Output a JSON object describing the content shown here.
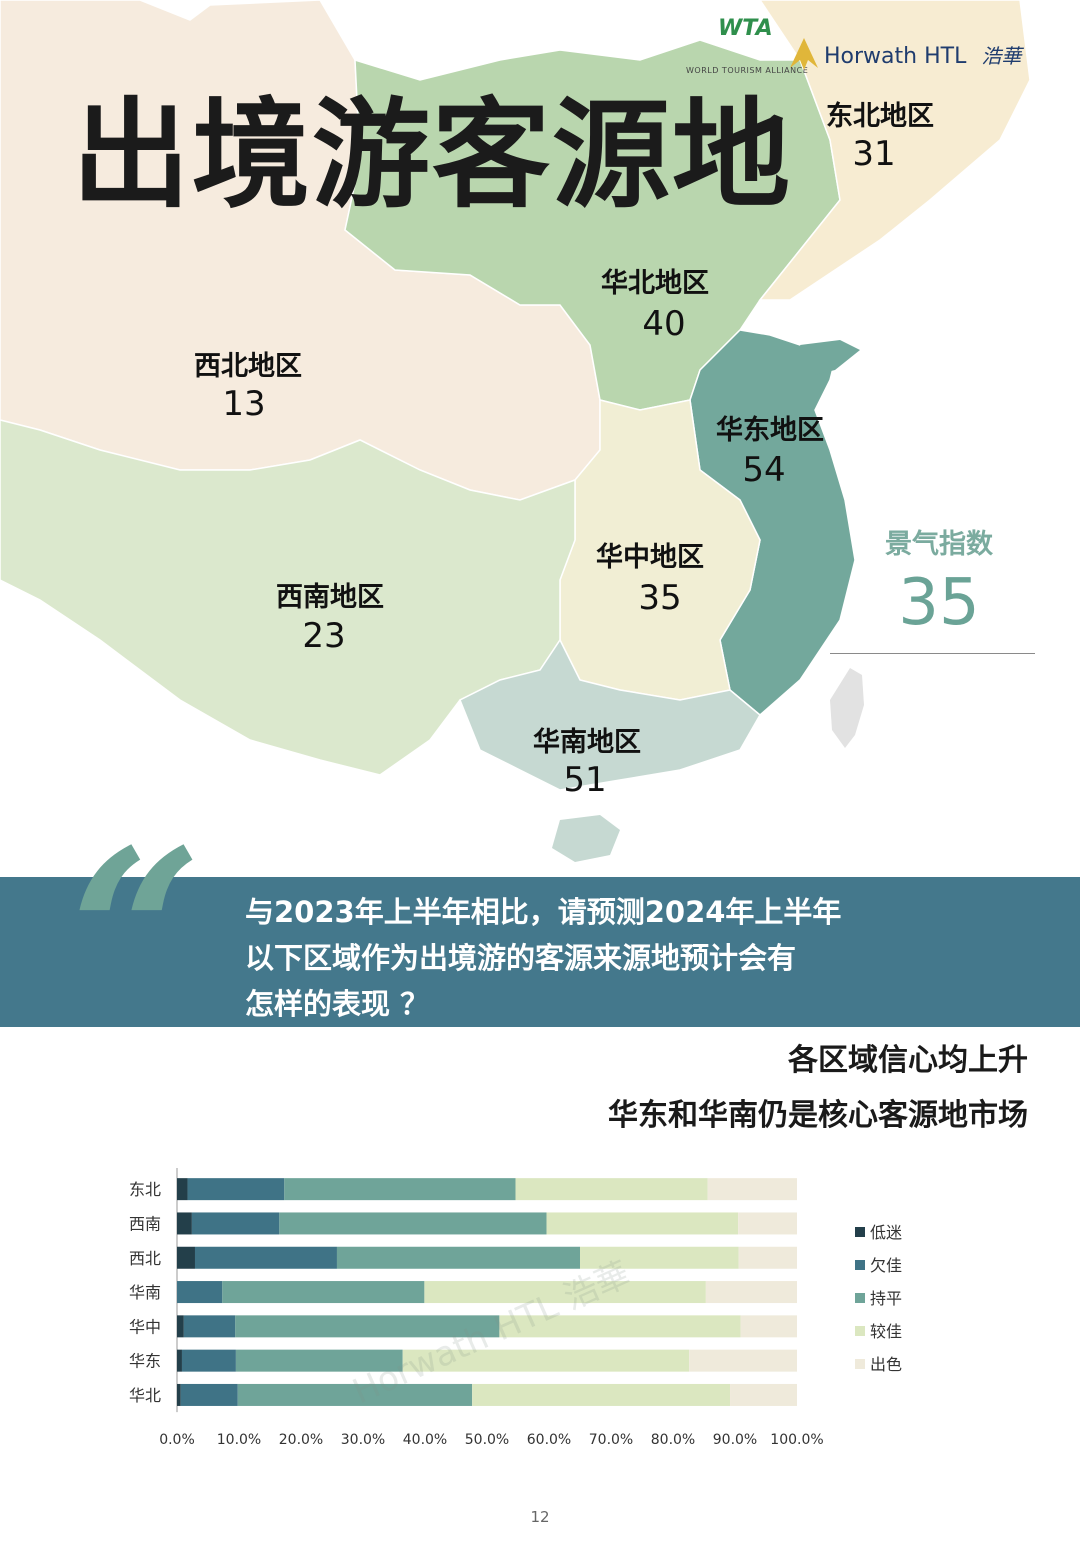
{
  "title": "出境游客源地",
  "logos": {
    "wta": "WTA",
    "wta_sub": "WORLD TOURISM ALLIANCE",
    "horwath": "Horwath HTL",
    "horwath_cn": "浩華"
  },
  "regions": [
    {
      "name": "东北地区",
      "value": "31",
      "color": "#f7ecd2"
    },
    {
      "name": "华北地区",
      "value": "40",
      "color": "#b9d6ae"
    },
    {
      "name": "西北地区",
      "value": "13",
      "color": "#f6ebde"
    },
    {
      "name": "华东地区",
      "value": "54",
      "color": "#73a89c"
    },
    {
      "name": "华中地区",
      "value": "35",
      "color": "#f1eed4"
    },
    {
      "name": "西南地区",
      "value": "23",
      "color": "#dbe8cd"
    },
    {
      "name": "华南地区",
      "value": "51",
      "color": "#c6d9d2"
    }
  ],
  "index": {
    "label": "景气指数",
    "value": "35"
  },
  "question": {
    "lines": [
      "与2023年上半年相比，请预测2024年上半年",
      "以下区域作为出境游的客源来源地预计会有",
      "怎样的表现 ？"
    ]
  },
  "headlines": [
    "各区域信心均上升",
    "华东和华南仍是核心客源地市场"
  ],
  "chart_data": {
    "type": "bar",
    "orientation": "horizontal",
    "stacked": true,
    "categories": [
      "东北",
      "西南",
      "西北",
      "华南",
      "华中",
      "华东",
      "华北"
    ],
    "series": [
      {
        "name": "低迷",
        "color": "#233f4a",
        "values": [
          1.7,
          2.4,
          2.9,
          0.0,
          1.1,
          0.8,
          0.6
        ]
      },
      {
        "name": "欠佳",
        "color": "#3f7386",
        "values": [
          15.6,
          14.1,
          22.9,
          7.3,
          8.3,
          8.7,
          9.2
        ]
      },
      {
        "name": "持平",
        "color": "#6fa499",
        "values": [
          37.3,
          43.1,
          39.2,
          32.6,
          42.6,
          26.9,
          37.8
        ]
      },
      {
        "name": "较佳",
        "color": "#dbe7c0",
        "values": [
          31.0,
          30.9,
          25.6,
          45.4,
          38.9,
          46.2,
          41.6
        ]
      },
      {
        "name": "出色",
        "color": "#efeadb",
        "values": [
          14.4,
          9.5,
          9.4,
          14.7,
          9.1,
          17.4,
          10.8
        ]
      }
    ],
    "xlim": [
      0,
      100
    ],
    "xticks": [
      "0.0%",
      "10.0%",
      "20.0%",
      "30.0%",
      "40.0%",
      "50.0%",
      "60.0%",
      "70.0%",
      "80.0%",
      "90.0%",
      "100.0%"
    ],
    "legend_position": "right",
    "watermark": "Horwath HTL 浩華",
    "grid": false
  },
  "page_number": "12"
}
